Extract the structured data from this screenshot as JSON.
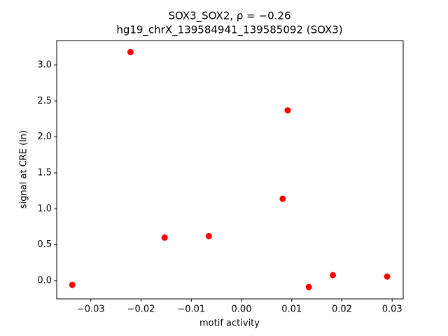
{
  "chart_data": {
    "type": "scatter",
    "title": "SOX3_SOX2, ρ = −0.26",
    "subtitle": "hg19_chrX_139584941_139585092 (SOX3)",
    "x_label": "motif activity",
    "y_label": "signal at CRE (ln)",
    "color": "#ff0000",
    "x": [
      -0.0337,
      -0.0221,
      -0.0153,
      -0.0065,
      0.0082,
      0.0092,
      0.0134,
      0.0182,
      0.029
    ],
    "values": [
      -0.058,
      3.18,
      0.6,
      0.62,
      1.14,
      2.37,
      -0.088,
      0.078,
      0.058
    ],
    "xlim": [
      -0.0368,
      0.0322
    ],
    "ylim": [
      -0.253,
      3.34
    ],
    "xticks": [
      {
        "value": -0.03,
        "label": "−0.03"
      },
      {
        "value": -0.02,
        "label": "−0.02"
      },
      {
        "value": -0.01,
        "label": "−0.01"
      },
      {
        "value": 0,
        "label": "0.00"
      },
      0.01,
      0.02,
      0.03
    ],
    "yticks": [
      {
        "value": 0,
        "label": "0.0"
      },
      0.5,
      {
        "value": 1,
        "label": "1.0"
      },
      1.5,
      {
        "value": 2,
        "label": "2.0"
      },
      2.5,
      {
        "value": 3,
        "label": "3.0"
      }
    ]
  }
}
